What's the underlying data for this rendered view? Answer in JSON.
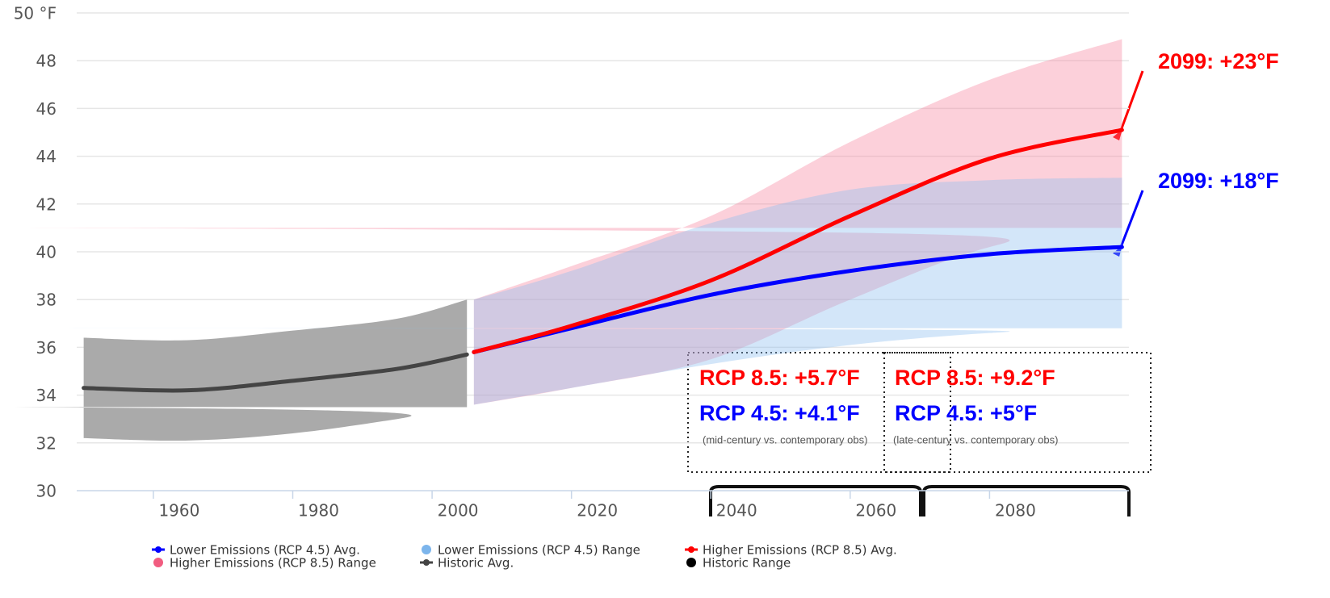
{
  "chart_data": {
    "type": "line",
    "xlim": [
      1949,
      2100
    ],
    "ylim": [
      30,
      50
    ],
    "xticks": [
      1960,
      1980,
      2000,
      2020,
      2040,
      2060,
      2080
    ],
    "yticks": [
      30,
      32,
      34,
      36,
      38,
      40,
      42,
      44,
      46,
      48,
      {
        "value": 50,
        "label": "50 °F"
      }
    ],
    "grid": true,
    "series": [
      {
        "name": "Lower Emissions (RCP 4.5) Avg.",
        "type": "line",
        "color": "#0000ff",
        "legend_color": "#0000ff",
        "x": [
          2006,
          2020,
          2040,
          2060,
          2080,
          2099
        ],
        "values": [
          35.8,
          36.8,
          38.2,
          39.2,
          39.9,
          40.2
        ]
      },
      {
        "name": "Lower Emissions (RCP 4.5) Range",
        "type": "arearange",
        "color": "rgba(140,190,240,0.38)",
        "legend_color": "#7cb5ec",
        "x": [
          2006,
          2020,
          2040,
          2060,
          2080,
          2099
        ],
        "low": [
          33.6,
          34.3,
          35.3,
          36.1,
          36.6,
          36.8
        ],
        "high": [
          38,
          39.2,
          41.2,
          42.6,
          43,
          43.1
        ]
      },
      {
        "name": "Higher Emissions (RCP 8.5) Avg.",
        "type": "line",
        "color": "#ff0000",
        "legend_color": "#ff0000",
        "x": [
          2006,
          2020,
          2040,
          2060,
          2080,
          2099
        ],
        "values": [
          35.8,
          36.9,
          38.8,
          41.5,
          43.9,
          45.1
        ]
      },
      {
        "name": "Higher Emissions (RCP 8.5) Range",
        "type": "arearange",
        "color": "rgba(245,120,150,0.35)",
        "legend_color": "#f15c80",
        "x": [
          2006,
          2020,
          2040,
          2060,
          2080,
          2099
        ],
        "low": [
          33.6,
          34.3,
          35.5,
          38,
          40.2,
          41
        ],
        "high": [
          38,
          39.4,
          41.5,
          44.6,
          47.2,
          48.9
        ]
      },
      {
        "name": "Historic Avg.",
        "type": "line",
        "color": "#444444",
        "legend_color": "#444444",
        "x": [
          1950,
          1965,
          1980,
          1995,
          2005
        ],
        "values": [
          34.3,
          34.2,
          34.6,
          35.1,
          35.7
        ]
      },
      {
        "name": "Historic Range",
        "type": "arearange",
        "color": "#aaaaaa",
        "legend_color": "#000000",
        "x": [
          1950,
          1965,
          1980,
          1995,
          2005
        ],
        "low": [
          32.2,
          32.1,
          32.4,
          33,
          33.5
        ],
        "high": [
          36.4,
          36.3,
          36.7,
          37.2,
          38
        ]
      }
    ],
    "annotations": [
      {
        "text": "2099: +23°F",
        "color": "#ff0000"
      },
      {
        "text": "2099: +18°F",
        "color": "#0000ff"
      },
      {
        "text": "RCP 8.5: +5.7°F",
        "color": "#ff0000"
      },
      {
        "text": "RCP 4.5: +4.1°F",
        "color": "#0000ff"
      },
      {
        "text": "(mid-century vs. contemporary obs)",
        "color": "#555555"
      },
      {
        "text": "RCP 8.5: +9.2°F",
        "color": "#ff0000"
      },
      {
        "text": "RCP 4.5: +5°F",
        "color": "#0000ff"
      },
      {
        "text": "(late-century vs. contemporary obs)",
        "color": "#555555"
      }
    ]
  }
}
